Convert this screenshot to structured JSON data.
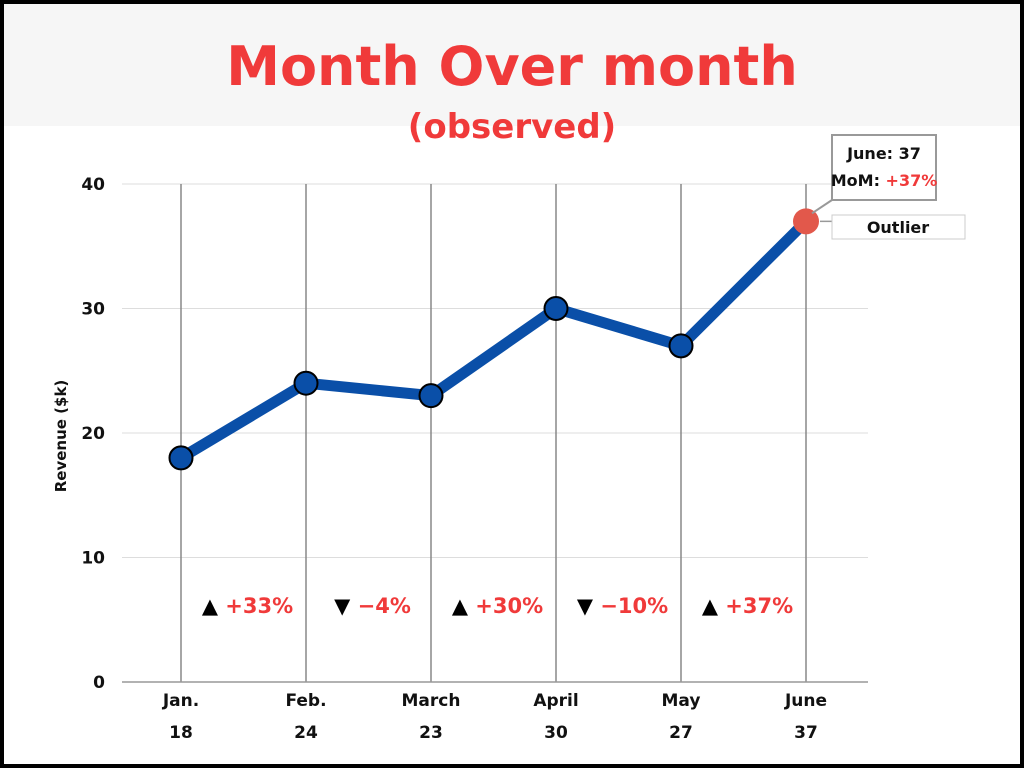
{
  "title": "Month Over month",
  "subtitle": "(observed)",
  "colors": {
    "accent": "#f03a3a",
    "line": "#0a4fa8",
    "marker": "#0a4fa8",
    "outlier": "#e2584b",
    "grid": "#dddddd",
    "vline": "#888888"
  },
  "chart_data": {
    "type": "line",
    "title": "Month Over month",
    "subtitle": "(observed)",
    "xlabel": "",
    "ylabel": "Revenue ($k)",
    "ylim": [
      0,
      40
    ],
    "yticks": [
      0,
      10,
      20,
      30,
      40
    ],
    "grid": true,
    "categories": [
      "Jan.",
      "Feb.",
      "March",
      "April",
      "May",
      "June"
    ],
    "values": [
      18,
      24,
      23,
      30,
      27,
      37
    ],
    "value_labels": [
      "18",
      "24",
      "23",
      "30",
      "27",
      "37"
    ],
    "mom_changes": [
      {
        "direction": "up",
        "arrow": "▲",
        "label": "+33%"
      },
      {
        "direction": "down",
        "arrow": "▼",
        "label": "−4%"
      },
      {
        "direction": "up",
        "arrow": "▲",
        "label": "+30%"
      },
      {
        "direction": "down",
        "arrow": "▼",
        "label": "−10%"
      },
      {
        "direction": "up",
        "arrow": "▲",
        "label": "+37%"
      }
    ],
    "outlier": {
      "index": 5,
      "tag": "Outlier",
      "callout_line1": "June: 37",
      "callout_mom_label": "MoM:",
      "callout_mom_value": "+37%"
    }
  }
}
